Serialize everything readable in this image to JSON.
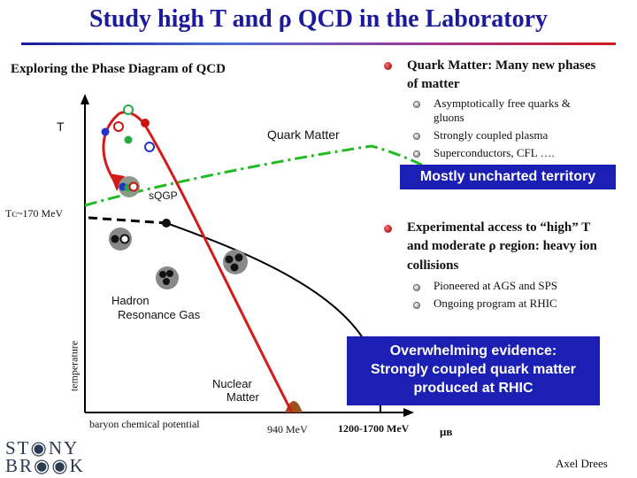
{
  "title": "Study high T and ρ QCD in the Laboratory",
  "left": {
    "subtitle": "Exploring the Phase Diagram of QCD",
    "t_label": "T",
    "tc_label": "Tᴄ~170 MeV",
    "quark_matter": "Quark Matter",
    "sqgp": "sQGP",
    "hadron_line1": "Hadron",
    "hadron_line2": "Resonance Gas",
    "nuclear_line1": "Nuclear",
    "nuclear_line2": "Matter",
    "temperature": "temperature",
    "baryon": "baryon chemical potential",
    "mev940": "940 MeV",
    "mev1200": "1200-1700 MeV",
    "mu_b": "μʙ"
  },
  "right": {
    "bullet1_line1": "Quark Matter: Many new phases",
    "bullet1_line2": "of matter",
    "sub1_line1": "Asymptotically free quarks &",
    "sub1_line2": "gluons",
    "sub2": "Strongly coupled plasma",
    "sub3": "Superconductors, CFL ….",
    "banner": "Mostly uncharted territory",
    "bullet2_line1": "Experimental access to “high” T",
    "bullet2_line2": "and moderate ρ region: heavy ion",
    "bullet2_line3": "collisions",
    "sub4": "Pioneered at AGS and SPS",
    "sub5": "Ongoing program at RHIC",
    "evidence_line1": "Overwhelming evidence:",
    "evidence_line2": "Strongly coupled quark matter",
    "evidence_line3": "produced at RHIC"
  },
  "logo": {
    "line1": "ST◉NY",
    "line2": "BR◉◉K"
  },
  "author": "Axel Drees",
  "colors": {
    "title": "#1a1a9a",
    "banner": "#1b1fb3",
    "arrow": "#d41a1a",
    "qgp_boundary": "#22bb22",
    "axis": "#000000"
  }
}
